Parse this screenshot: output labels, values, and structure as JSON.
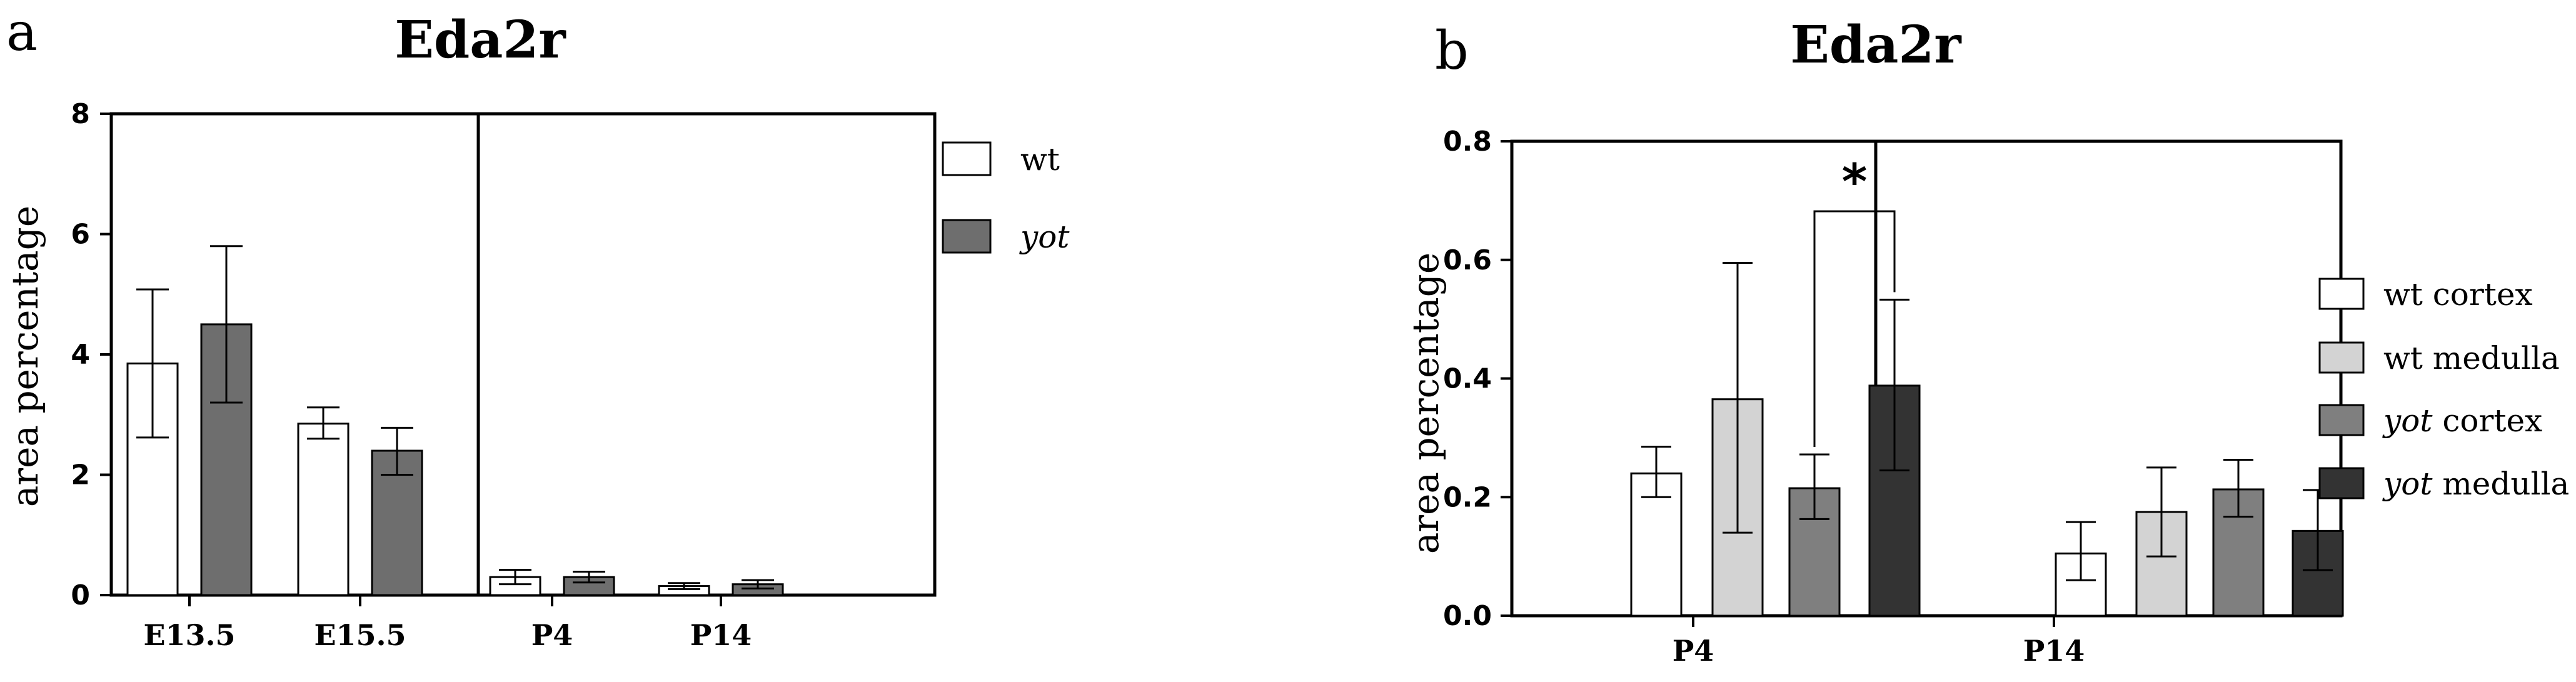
{
  "panels": [
    {
      "letter": "a",
      "title": "Eda2r",
      "ylabel": "area percentage",
      "colors": {
        "wt": "#ffffff",
        "yot": "#6e6e6e"
      },
      "chart_data": {
        "type": "bar",
        "title": "Eda2r",
        "xlabel": "",
        "ylabel": "area percentage",
        "ylim": [
          0,
          8
        ],
        "yticks": [
          "0",
          "2",
          "4",
          "6",
          "8"
        ],
        "categories": [
          "E13.5",
          "E15.5",
          "P4",
          "P14"
        ],
        "series": [
          {
            "name": "wt",
            "values": [
              3.85,
              2.85,
              0.3,
              0.15
            ],
            "err_low": [
              2.62,
              2.6,
              0.18,
              0.1
            ],
            "err_high": [
              5.08,
              3.12,
              0.42,
              0.2
            ],
            "color": "#ffffff"
          },
          {
            "name": "yot",
            "values": [
              4.5,
              2.4,
              0.3,
              0.18
            ],
            "err_low": [
              3.2,
              2.0,
              0.21,
              0.11
            ],
            "err_high": [
              5.8,
              2.78,
              0.39,
              0.25
            ],
            "color": "#6e6e6e"
          }
        ],
        "grid": false,
        "legend": "right"
      }
    },
    {
      "letter": "b",
      "title": "Eda2r",
      "ylabel": "area percentage",
      "significance": "*",
      "chart_data": {
        "type": "bar",
        "title": "Eda2r",
        "xlabel": "",
        "ylabel": "area percentage",
        "ylim": [
          0,
          0.8
        ],
        "yticks": [
          "0.0",
          "0.2",
          "0.4",
          "0.6",
          "0.8"
        ],
        "categories": [
          "P4",
          "P14"
        ],
        "series": [
          {
            "name": "wt cortex",
            "values": [
              0.24,
              0.105
            ],
            "err_low": [
              0.2,
              0.06
            ],
            "err_high": [
              0.285,
              0.158
            ],
            "color": "#ffffff"
          },
          {
            "name": "wt medulla",
            "values": [
              0.365,
              0.175
            ],
            "err_low": [
              0.14,
              0.1
            ],
            "err_high": [
              0.595,
              0.25
            ],
            "color": "#d3d3d3"
          },
          {
            "name": "yot cortex",
            "values": [
              0.215,
              0.213
            ],
            "err_low": [
              0.163,
              0.167
            ],
            "err_high": [
              0.272,
              0.263
            ],
            "color": "#7f7f7f"
          },
          {
            "name": "yot medulla",
            "values": [
              0.388,
              0.143
            ],
            "err_low": [
              0.245,
              0.077
            ],
            "err_high": [
              0.533,
              0.212
            ],
            "color": "#333333"
          }
        ],
        "annotations": [
          "*"
        ],
        "grid": false,
        "legend": "right"
      }
    }
  ],
  "legend_a": [
    {
      "prefix": "wt",
      "suffix": "",
      "italic_prefix": false,
      "color": "#ffffff"
    },
    {
      "prefix": "yot",
      "suffix": "",
      "italic_prefix": true,
      "color": "#6e6e6e"
    }
  ],
  "legend_b": [
    {
      "prefix": "wt",
      "suffix": " cortex",
      "italic_prefix": false,
      "color": "#ffffff"
    },
    {
      "prefix": "wt",
      "suffix": " medulla",
      "italic_prefix": false,
      "color": "#d3d3d3"
    },
    {
      "prefix": "yot",
      "suffix": " cortex",
      "italic_prefix": true,
      "color": "#7f7f7f"
    },
    {
      "prefix": "yot",
      "suffix": " medulla",
      "italic_prefix": true,
      "color": "#333333"
    }
  ]
}
